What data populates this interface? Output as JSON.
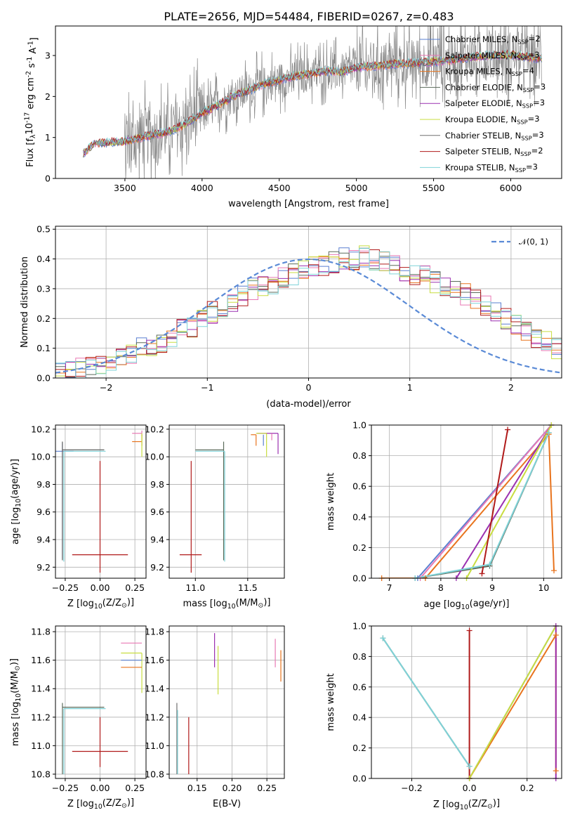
{
  "colors": {
    "Chabrier MILES": "#5a7fd0",
    "Salpeter MILES": "#e879b4",
    "Kroupa MILES": "#e8741e",
    "Chabrier ELODIE": "#5b6b5b",
    "Salpeter ELODIE": "#9b30b0",
    "Kroupa ELODIE": "#c8dd40",
    "Chabrier STELIB": "#707070",
    "Salpeter STELIB": "#b01a1a",
    "Kroupa STELIB": "#7fd3d8"
  },
  "chart_data": [
    {
      "type": "line",
      "title": "PLATE=2656, MJD=54484, FIBERID=0267, z=0.483",
      "xlabel": "wavelength [Angstrom, rest frame]",
      "ylabel": "Flux [f$_\\lambda$10$^{-17}$ erg cm$^{-2}$ s$^{-1}$ A$^{-1}$]",
      "xlim": [
        3050,
        6330
      ],
      "ylim": [
        0,
        3.72
      ],
      "xticks": [
        "3500",
        "4000",
        "4500",
        "5000",
        "5500",
        "6000"
      ],
      "yticks": [
        "0",
        "1",
        "2",
        "3"
      ],
      "legend_position": "top-right",
      "series": [
        {
          "name": "Chabrier MILES, N$_{SSP}$=2"
        },
        {
          "name": "Salpeter MILES, N$_{SSP}$=3"
        },
        {
          "name": "Kroupa MILES, N$_{SSP}$=4"
        },
        {
          "name": "Chabrier ELODIE, N$_{SSP}$=3"
        },
        {
          "name": "Salpeter ELODIE, N$_{SSP}$=3"
        },
        {
          "name": "Kroupa ELODIE, N$_{SSP}$=3"
        },
        {
          "name": "Chabrier STELIB, N$_{SSP}$=3"
        },
        {
          "name": "Salpeter STELIB, N$_{SSP}$=2"
        },
        {
          "name": "Kroupa STELIB, N$_{SSP}$=3"
        }
      ],
      "model_shape": {
        "x": [
          3230,
          3300,
          3400,
          3500,
          3600,
          3700,
          3800,
          3900,
          4000,
          4100,
          4200,
          4300,
          4400,
          4500,
          4600,
          4700,
          4800,
          4900,
          5000,
          5200,
          5400,
          5600,
          5800,
          6000,
          6200
        ],
        "y": [
          0.6,
          0.85,
          0.88,
          0.9,
          1.0,
          1.08,
          1.15,
          1.35,
          1.6,
          1.78,
          2.0,
          2.15,
          2.3,
          2.4,
          2.5,
          2.55,
          2.62,
          2.6,
          2.7,
          2.78,
          2.82,
          2.88,
          2.98,
          3.02,
          2.92
        ]
      }
    },
    {
      "type": "histogram",
      "xlabel": "(data-model)/error",
      "ylabel": "Normed distribution",
      "xlim": [
        -2.5,
        2.5
      ],
      "ylim": [
        0,
        0.51
      ],
      "xticks": [
        "−2",
        "−1",
        "0",
        "1",
        "2"
      ],
      "yticks": [
        "0.0",
        "0.1",
        "0.2",
        "0.3",
        "0.4",
        "0.5"
      ],
      "legend_position": "top-right",
      "legend": "$\\mathcal{N}(0, 1)$",
      "bin_width": 0.1,
      "mean_values": [
        0.02,
        0.025,
        0.03,
        0.04,
        0.05,
        0.06,
        0.075,
        0.085,
        0.1,
        0.11,
        0.12,
        0.14,
        0.16,
        0.17,
        0.2,
        0.22,
        0.24,
        0.26,
        0.28,
        0.3,
        0.31,
        0.32,
        0.34,
        0.35,
        0.36,
        0.37,
        0.38,
        0.39,
        0.4,
        0.4,
        0.41,
        0.4,
        0.39,
        0.38,
        0.36,
        0.35,
        0.34,
        0.32,
        0.31,
        0.3,
        0.28,
        0.26,
        0.24,
        0.22,
        0.2,
        0.18,
        0.16,
        0.14,
        0.12,
        0.1,
        0.09
      ]
    },
    {
      "type": "scatter",
      "xlabel": "Z [log$_{10}$($Z/Z_\\odot$)]",
      "ylabel": "age  [log$_{10}$($age/yr$)]",
      "xlim": [
        -0.32,
        0.33
      ],
      "ylim": [
        9.12,
        10.23
      ],
      "xticks": [
        "−0.25",
        "0.00",
        "0.25"
      ],
      "yticks": [
        "9.2",
        "9.4",
        "9.6",
        "9.8",
        "10.0",
        "10.2"
      ],
      "points": [
        {
          "model": "Chabrier MILES",
          "x": -0.27,
          "y": 10.04,
          "xerr": [
            0.08,
            0.08
          ],
          "yerr": [
            0.78,
            0.06
          ]
        },
        {
          "model": "Chabrier ELODIE",
          "x": -0.27,
          "y": 10.05,
          "xerr": [
            0.0,
            0.3
          ],
          "yerr": [
            0.8,
            0.06
          ]
        },
        {
          "model": "Chabrier STELIB",
          "x": -0.27,
          "y": 10.05,
          "xerr": [
            0.0,
            0.3
          ],
          "yerr": [
            0.8,
            0.06
          ]
        },
        {
          "model": "Kroupa STELIB",
          "x": -0.26,
          "y": 10.04,
          "xerr": [
            0.0,
            0.3
          ],
          "yerr": [
            0.8,
            0.0
          ]
        },
        {
          "model": "Salpeter STELIB",
          "x": 0.0,
          "y": 9.29,
          "xerr": [
            0.2,
            0.2
          ],
          "yerr": [
            0.13,
            0.68
          ]
        },
        {
          "model": "Salpeter MILES",
          "x": 0.3,
          "y": 10.17,
          "xerr": [
            0.07,
            0.0
          ],
          "yerr": [
            0.02,
            0.02
          ]
        },
        {
          "model": "Kroupa MILES",
          "x": 0.3,
          "y": 10.11,
          "xerr": [
            0.07,
            0.0
          ],
          "yerr": [
            0.03,
            0.05
          ]
        },
        {
          "model": "Kroupa ELODIE",
          "x": 0.3,
          "y": 10.17,
          "xerr": [
            0.0,
            0.0
          ],
          "yerr": [
            0.17,
            0.0
          ]
        }
      ]
    },
    {
      "type": "scatter",
      "xlabel": "mass [log$_{10}$($M/M_\\odot$)]",
      "ylabel": "",
      "xlim": [
        10.75,
        11.85
      ],
      "ylim": [
        9.12,
        10.23
      ],
      "xticks": [
        "11.0",
        "11.5"
      ],
      "yticks": [
        "9.2",
        "9.4",
        "9.6",
        "9.8",
        "10.0",
        "10.2"
      ],
      "points": [
        {
          "model": "Chabrier ELODIE",
          "x": 11.27,
          "y": 10.05,
          "xerr": [
            0.27,
            0.0
          ],
          "yerr": [
            0.8,
            0.06
          ]
        },
        {
          "model": "Kroupa STELIB",
          "x": 11.28,
          "y": 10.04,
          "xerr": [
            0.28,
            0.0
          ],
          "yerr": [
            0.8,
            0.0
          ]
        },
        {
          "model": "Salpeter STELIB",
          "x": 10.96,
          "y": 9.29,
          "xerr": [
            0.11,
            0.1
          ],
          "yerr": [
            0.13,
            0.68
          ]
        },
        {
          "model": "Salpeter ELODIE",
          "x": 11.79,
          "y": 10.17,
          "xerr": [
            0.2,
            0.0
          ],
          "yerr": [
            0.15,
            0.0
          ]
        },
        {
          "model": "Kroupa ELODIE",
          "x": 11.68,
          "y": 10.17,
          "xerr": [
            0.1,
            0.0
          ],
          "yerr": [
            0.17,
            0.0
          ]
        },
        {
          "model": "Kroupa MILES",
          "x": 11.58,
          "y": 10.16,
          "xerr": [
            0.05,
            0.0
          ],
          "yerr": [
            0.08,
            0.0
          ]
        },
        {
          "model": "Salpeter MILES",
          "x": 11.73,
          "y": 10.17,
          "xerr": [
            0.0,
            0.0
          ],
          "yerr": [
            0.05,
            0.0
          ]
        },
        {
          "model": "Chabrier MILES",
          "x": 11.65,
          "y": 10.16,
          "xerr": [
            0.0,
            0.0
          ],
          "yerr": [
            0.08,
            0.0
          ]
        }
      ]
    },
    {
      "type": "line",
      "xlabel": "age  [log$_{10}$($age/yr$)]",
      "ylabel": "mass weight",
      "xlim": [
        6.65,
        10.35
      ],
      "ylim": [
        0,
        1.0
      ],
      "xticks": [
        "7",
        "8",
        "9",
        "10"
      ],
      "yticks": [
        "0.0",
        "0.2",
        "0.4",
        "0.6",
        "0.8",
        "1.0"
      ],
      "series": [
        {
          "model": "Chabrier MILES",
          "x": [
            7.55,
            10.15
          ],
          "y": [
            0.0,
            1.0
          ]
        },
        {
          "model": "Salpeter MILES",
          "x": [
            7.6,
            10.15
          ],
          "y": [
            0.0,
            1.0
          ]
        },
        {
          "model": "Kroupa MILES",
          "x": [
            6.85,
            7.7,
            10.1,
            10.2
          ],
          "y": [
            0.0,
            0.0,
            0.94,
            0.05
          ]
        },
        {
          "model": "Chabrier ELODIE",
          "x": [
            7.5,
            8.95,
            10.1
          ],
          "y": [
            0.0,
            0.08,
            0.95
          ]
        },
        {
          "model": "Salpeter ELODIE",
          "x": [
            8.3,
            10.15
          ],
          "y": [
            0.0,
            1.0
          ]
        },
        {
          "model": "Kroupa ELODIE",
          "x": [
            8.5,
            10.15
          ],
          "y": [
            0.0,
            1.0
          ]
        },
        {
          "model": "Salpeter STELIB",
          "x": [
            8.8,
            9.3
          ],
          "y": [
            0.03,
            0.97
          ]
        },
        {
          "model": "Kroupa STELIB",
          "x": [
            7.5,
            8.95,
            10.1
          ],
          "y": [
            0.0,
            0.09,
            0.95
          ]
        }
      ]
    },
    {
      "type": "scatter",
      "xlabel": "Z [log$_{10}$($Z/Z_\\odot$)]",
      "ylabel": "mass [log$_{10}$($M/M_\\odot$)]",
      "xlim": [
        -0.32,
        0.33
      ],
      "ylim": [
        10.77,
        11.84
      ],
      "xticks": [
        "−0.25",
        "0.00",
        "0.25"
      ],
      "yticks": [
        "10.8",
        "11.0",
        "11.2",
        "11.4",
        "11.6",
        "11.8"
      ],
      "points": [
        {
          "model": "Chabrier ELODIE",
          "x": -0.27,
          "y": 11.27,
          "xerr": [
            0.0,
            0.3
          ],
          "yerr": [
            0.47,
            0.03
          ]
        },
        {
          "model": "Kroupa STELIB",
          "x": -0.26,
          "y": 11.26,
          "xerr": [
            0.0,
            0.3
          ],
          "yerr": [
            0.46,
            0.0
          ]
        },
        {
          "model": "Salpeter STELIB",
          "x": 0.0,
          "y": 10.96,
          "xerr": [
            0.2,
            0.2
          ],
          "yerr": [
            0.11,
            0.24
          ]
        },
        {
          "model": "Salpeter ELODIE",
          "x": 0.3,
          "y": 11.79,
          "xerr": [
            0.0,
            0.0
          ],
          "yerr": [
            0.0,
            0.0
          ]
        },
        {
          "model": "Salpeter MILES",
          "x": 0.3,
          "y": 11.72,
          "xerr": [
            0.15,
            0.0
          ],
          "yerr": [
            0.0,
            0.0
          ]
        },
        {
          "model": "Kroupa ELODIE",
          "x": 0.3,
          "y": 11.65,
          "xerr": [
            0.15,
            0.0
          ],
          "yerr": [
            0.28,
            0.0
          ]
        },
        {
          "model": "Chabrier MILES",
          "x": 0.3,
          "y": 11.6,
          "xerr": [
            0.15,
            0.0
          ],
          "yerr": [
            0.0,
            0.0
          ]
        },
        {
          "model": "Kroupa MILES",
          "x": 0.3,
          "y": 11.55,
          "xerr": [
            0.15,
            0.0
          ],
          "yerr": [
            0.0,
            0.0
          ]
        }
      ]
    },
    {
      "type": "scatter",
      "xlabel": "E(B-V)",
      "ylabel": "",
      "xlim": [
        0.11,
        0.275
      ],
      "ylim": [
        10.77,
        11.84
      ],
      "xticks": [
        "0.15",
        "0.20",
        "0.25"
      ],
      "yticks": [
        "10.8",
        "11.0",
        "11.2",
        "11.4",
        "11.6",
        "11.8"
      ],
      "points": [
        {
          "model": "Chabrier STELIB",
          "x": 0.121,
          "y": 11.25,
          "yerr": [
            0.45,
            0.05
          ]
        },
        {
          "model": "Kroupa STELIB",
          "x": 0.122,
          "y": 11.25,
          "yerr": [
            0.45,
            0.0
          ]
        },
        {
          "model": "Salpeter STELIB",
          "x": 0.138,
          "y": 11.05,
          "yerr": [
            0.25,
            0.15
          ]
        },
        {
          "model": "Salpeter ELODIE",
          "x": 0.175,
          "y": 11.67,
          "yerr": [
            0.12,
            0.12
          ]
        },
        {
          "model": "Kroupa ELODIE",
          "x": 0.18,
          "y": 11.55,
          "yerr": [
            0.19,
            0.15
          ]
        },
        {
          "model": "Salpeter MILES",
          "x": 0.262,
          "y": 11.65,
          "yerr": [
            0.1,
            0.1
          ]
        },
        {
          "model": "Kroupa MILES",
          "x": 0.27,
          "y": 11.55,
          "yerr": [
            0.1,
            0.12
          ]
        }
      ]
    },
    {
      "type": "line",
      "xlabel": "Z [log$_{10}$($Z/Z_\\odot$)]",
      "ylabel": "mass weight",
      "xlim": [
        -0.34,
        0.32
      ],
      "ylim": [
        0,
        1.0
      ],
      "xticks": [
        "−0.2",
        "0.0",
        "0.2"
      ],
      "yticks": [
        "0.0",
        "0.2",
        "0.4",
        "0.6",
        "0.8",
        "1.0"
      ],
      "series": [
        {
          "model": "Chabrier ELODIE",
          "x": [
            -0.3,
            0.0
          ],
          "y": [
            0.92,
            0.08
          ]
        },
        {
          "model": "Kroupa STELIB",
          "x": [
            -0.3,
            0.0
          ],
          "y": [
            0.92,
            0.08
          ]
        },
        {
          "model": "Salpeter STELIB",
          "x": [
            0.0,
            0.0
          ],
          "y": [
            0.0,
            0.97
          ]
        },
        {
          "model": "Chabrier MILES",
          "x": [
            0.0,
            0.3
          ],
          "y": [
            0.0,
            1.0
          ]
        },
        {
          "model": "Kroupa MILES",
          "x": [
            0.0,
            0.3,
            0.3
          ],
          "y": [
            0.0,
            0.94,
            0.05
          ]
        },
        {
          "model": "Kroupa ELODIE",
          "x": [
            0.0,
            0.3
          ],
          "y": [
            0.0,
            1.0
          ]
        },
        {
          "model": "Salpeter ELODIE",
          "x": [
            0.3,
            0.3
          ],
          "y": [
            0.0,
            1.0
          ]
        }
      ]
    }
  ]
}
